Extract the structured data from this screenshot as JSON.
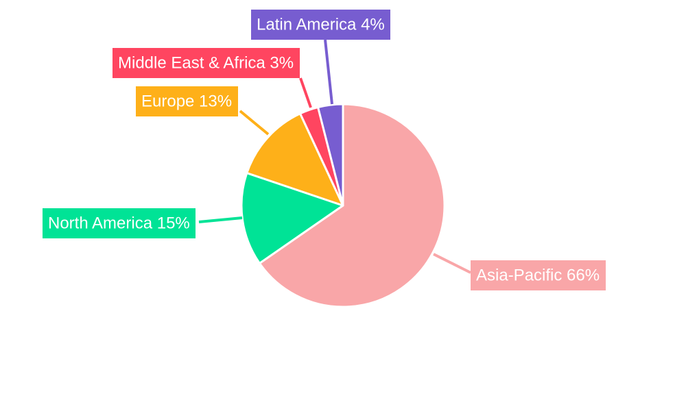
{
  "chart_data": {
    "type": "pie",
    "slices": [
      {
        "label": "Asia-Pacific",
        "value": 66,
        "display": "Asia-Pacific 66%",
        "color": "#f9a6a8"
      },
      {
        "label": "North America",
        "value": 15,
        "display": "North America 15%",
        "color": "#00e396"
      },
      {
        "label": "Europe",
        "value": 13,
        "display": "Europe 13%",
        "color": "#feb019"
      },
      {
        "label": "Middle East & Africa",
        "value": 3,
        "display": "Middle East & Africa 3%",
        "color": "#ff4560"
      },
      {
        "label": "Latin America",
        "value": 4,
        "display": "Latin America 4%",
        "color": "#775dd0"
      }
    ],
    "start_angle_deg": 0,
    "direction": "clockwise",
    "legend": "none",
    "labels": "outside with leader lines"
  }
}
